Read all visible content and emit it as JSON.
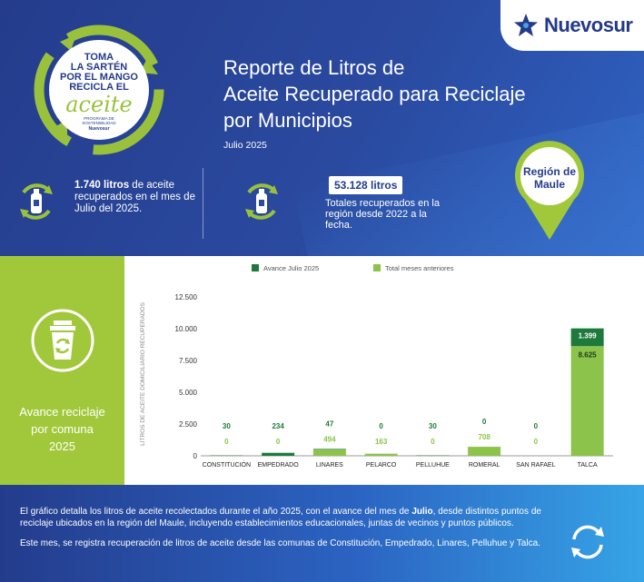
{
  "brand": {
    "name": "Nuevosur"
  },
  "badge": {
    "line1": "TOMA",
    "line2": "LA SARTÉN",
    "line3": "POR EL MANGO",
    "line4": "RECICLA EL",
    "word": "aceite",
    "program": "PROGRAMA DE SOSTENIBILIDAD",
    "brand": "Nuevosur"
  },
  "header": {
    "title_line1": "Reporte de Litros de",
    "title_line2": "Aceite Recuperado para Reciclaje",
    "title_line3": "por Municipios",
    "subtitle": "Julio 2025"
  },
  "stat_month": {
    "value": "1.740 litros",
    "text": "de aceite recuperados en el mes de Julio del 2025."
  },
  "stat_total": {
    "value": "53.128 litros",
    "text": "Totales recuperados en la región desde 2022 a la fecha."
  },
  "region": {
    "line1": "Región de",
    "line2": "Maule"
  },
  "left_panel": {
    "line1": "Avance reciclaje",
    "line2": "por comuna",
    "line3": "2025"
  },
  "colors": {
    "dark_green": "#1e7a3c",
    "light_green": "#8cc34a",
    "navy": "#243a8a",
    "lime": "#a1c83b"
  },
  "chart_data": {
    "type": "bar",
    "stacked": true,
    "ylabel": "LITROS DE ACEITE DOMICILIARIO RECUPERADOS",
    "ylim": [
      0,
      12500
    ],
    "yticks": [
      "0",
      "2.500",
      "5.000",
      "7.500",
      "10.000",
      "12.500"
    ],
    "ytick_values": [
      0,
      2500,
      5000,
      7500,
      10000,
      12500
    ],
    "legend_position": "top",
    "grid": false,
    "categories": [
      "CONSTITUCIÓN",
      "EMPEDRADO",
      "LINARES",
      "PELARCO",
      "PELLUHUE",
      "ROMERAL",
      "SAN RAFAEL",
      "TALCA"
    ],
    "series": [
      {
        "name": "Total meses anteriores",
        "color": "#8cc34a",
        "values": [
          0,
          0,
          494,
          163,
          0,
          708,
          0,
          8625
        ],
        "labels": [
          "0",
          "0",
          "494",
          "163",
          "0",
          "708",
          "0",
          "8.625"
        ]
      },
      {
        "name": "Avance Julio 2025",
        "color": "#1e7a3c",
        "values": [
          30,
          234,
          47,
          0,
          30,
          0,
          0,
          1399
        ],
        "labels": [
          "30",
          "234",
          "47",
          "0",
          "30",
          "0",
          "0",
          "1.399"
        ]
      }
    ]
  },
  "footer": {
    "p1_start": "El gráfico detalla los litros de aceite recolectados durante el año 2025, con el avance del mes de ",
    "p1_bold": "Julio",
    "p1_end": ", desde distintos puntos de reciclaje ubicados en la región del Maule, incluyendo establecimientos educacionales, juntas de vecinos y puntos públicos.",
    "p2": "Este mes, se registra recuperación de litros de aceite desde las comunas de Constitución, Empedrado, Linares, Pelluhue y Talca."
  }
}
